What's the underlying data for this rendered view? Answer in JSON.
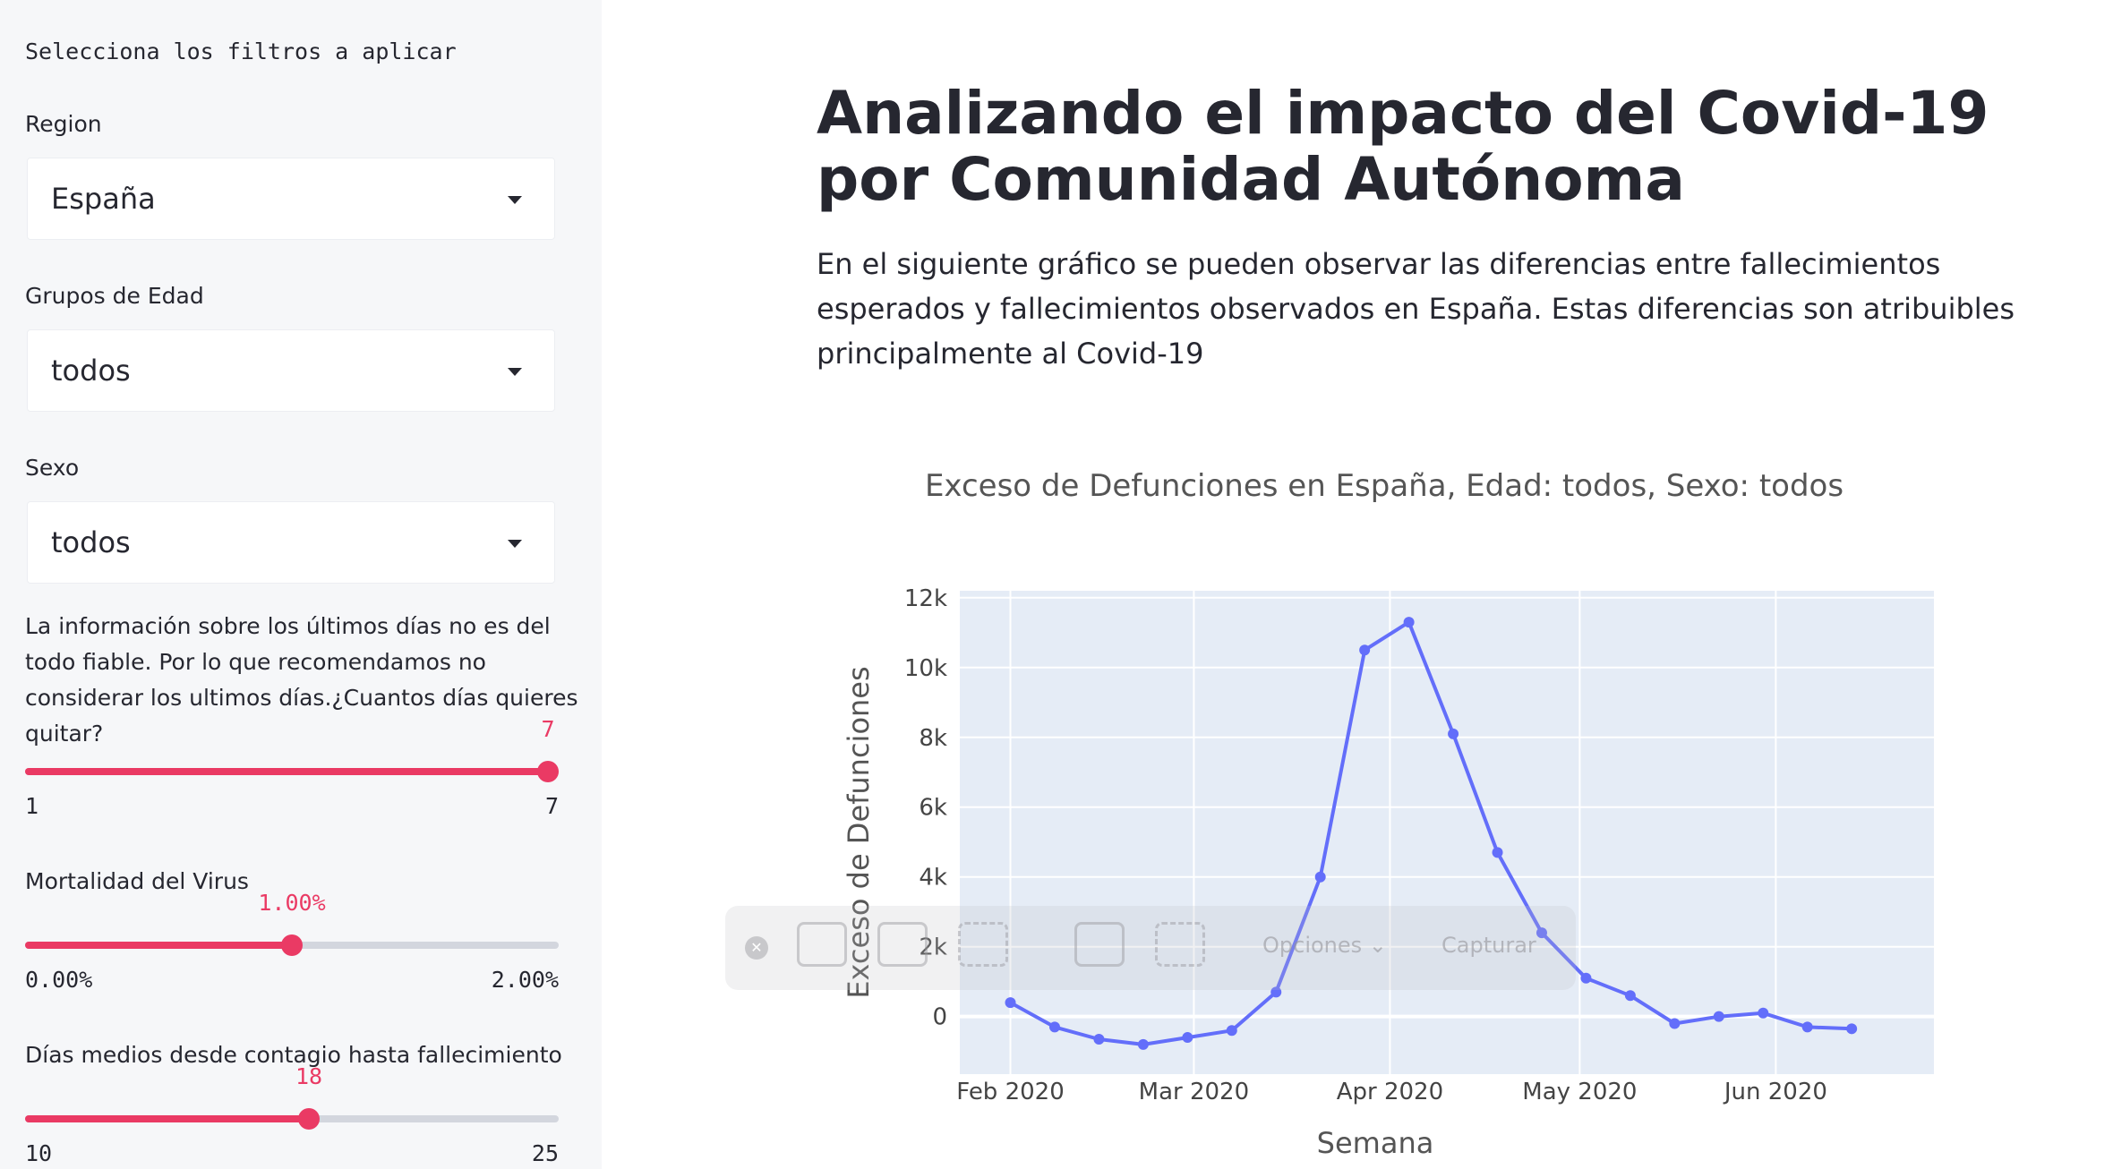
{
  "sidebar": {
    "heading": "Selecciona los filtros a aplicar",
    "region": {
      "label": "Region",
      "value": "España"
    },
    "age": {
      "label": "Grupos de Edad",
      "value": "todos"
    },
    "sex": {
      "label": "Sexo",
      "value": "todos"
    },
    "info": "La información sobre los últimos días no es del todo fiable. Por lo que recomendamos no considerar los ultimos días.¿Cuantos días quieres quitar?",
    "slider_days": {
      "value_label": "7",
      "min_label": "1",
      "max_label": "7",
      "value": 7,
      "min": 1,
      "max": 7
    },
    "mortality": {
      "label": "Mortalidad del Virus",
      "value_label": "1.00%",
      "min_label": "0.00%",
      "max_label": "2.00%",
      "value": 1,
      "min": 0,
      "max": 2
    },
    "avg_days": {
      "label": "Días medios desde contagio hasta fallecimiento",
      "value_label": "18",
      "min_label": "10",
      "max_label": "25",
      "value": 18,
      "min": 10,
      "max": 25
    }
  },
  "main": {
    "title": "Analizando el impacto del Covid-19 por Comunidad Autónoma",
    "description": "En el siguiente gráfico se pueden observar las diferencias entre fallecimientos esperados y fallecimientos observados en España. Estas diferencias son atribuibles principalmente al Covid-19"
  },
  "overlay": {
    "options_label": "Opciones ⌄",
    "capture_label": "Capturar"
  },
  "colors": {
    "accent": "#ea3a64",
    "line": "#636efa",
    "plot_bg": "#e5ecf6"
  },
  "chart_data": {
    "type": "line",
    "title": "Exceso de Defunciones en España, Edad: todos, Sexo: todos",
    "xlabel": "Semana",
    "ylabel": "Exceso de Defunciones",
    "x": [
      "2020-02-01",
      "2020-02-08",
      "2020-02-15",
      "2020-02-22",
      "2020-02-29",
      "2020-03-07",
      "2020-03-14",
      "2020-03-21",
      "2020-03-28",
      "2020-04-04",
      "2020-04-11",
      "2020-04-18",
      "2020-04-25",
      "2020-05-02",
      "2020-05-09",
      "2020-05-16",
      "2020-05-23",
      "2020-05-30",
      "2020-06-06",
      "2020-06-13"
    ],
    "y": [
      400,
      -300,
      -650,
      -800,
      -600,
      -400,
      700,
      4000,
      10500,
      11300,
      8100,
      4700,
      2400,
      1100,
      600,
      -200,
      0,
      100,
      -300,
      -350
    ],
    "x_ticks": [
      {
        "date": "2020-02-01",
        "label": "Feb 2020"
      },
      {
        "date": "2020-03-01",
        "label": "Mar 2020"
      },
      {
        "date": "2020-04-01",
        "label": "Apr 2020"
      },
      {
        "date": "2020-05-01",
        "label": "May 2020"
      },
      {
        "date": "2020-06-01",
        "label": "Jun 2020"
      }
    ],
    "y_ticks": [
      {
        "value": 0,
        "label": "0"
      },
      {
        "value": 2000,
        "label": "2k"
      },
      {
        "value": 4000,
        "label": "4k"
      },
      {
        "value": 6000,
        "label": "6k"
      },
      {
        "value": 8000,
        "label": "8k"
      },
      {
        "value": 10000,
        "label": "10k"
      },
      {
        "value": 12000,
        "label": "12k"
      }
    ],
    "xlim": [
      "2020-01-24",
      "2020-06-26"
    ],
    "ylim": [
      -1650,
      12200
    ],
    "grid": true,
    "series_color": "#636efa"
  }
}
